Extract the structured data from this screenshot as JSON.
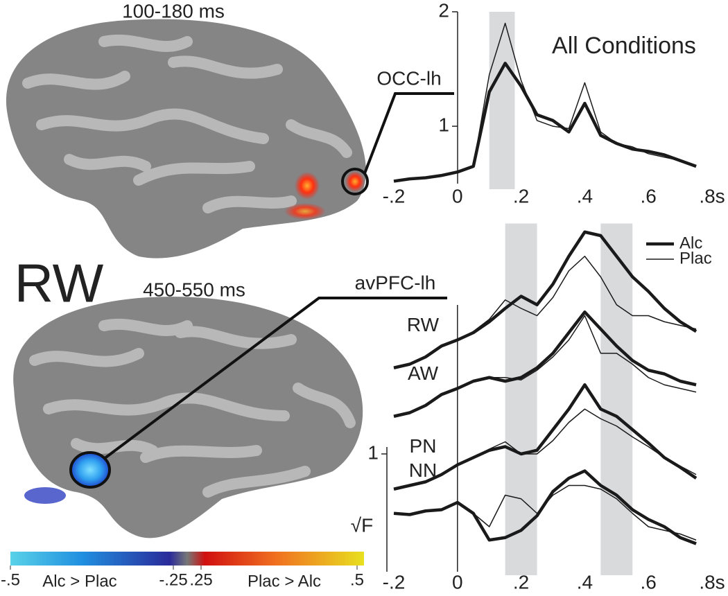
{
  "labels": {
    "panel": "RW",
    "window_top": "100-180 ms",
    "window_bottom": "450-550 ms",
    "region_top": "OCC-lh",
    "region_bottom": "avPFC-lh"
  },
  "colorbar": {
    "ticks": [
      {
        "value": -0.5,
        "label": "-.5"
      },
      {
        "value": -0.25,
        "label": "-.25"
      },
      {
        "value": 0.25,
        "label": ".25"
      },
      {
        "value": 0.5,
        "label": ".5"
      }
    ],
    "left_label": "Alc > Plac",
    "right_label": "Plac > Alc"
  },
  "chart_data": [
    {
      "type": "line",
      "title": "All Conditions",
      "x": [
        -0.2,
        -0.15,
        -0.1,
        -0.05,
        0,
        0.05,
        0.1,
        0.15,
        0.2,
        0.25,
        0.3,
        0.35,
        0.4,
        0.45,
        0.5,
        0.55,
        0.6,
        0.65,
        0.7,
        0.75
      ],
      "xlim": [
        -0.2,
        0.8
      ],
      "xticks": [
        {
          "value": -0.2,
          "label": "-.2"
        },
        0,
        {
          "value": 0.2,
          "label": ".2"
        },
        {
          "value": 0.4,
          "label": ".4"
        },
        {
          "value": 0.6,
          "label": ".6"
        },
        {
          "value": 0.8,
          "label": ".8s"
        }
      ],
      "ylim": [
        0.45,
        2.0
      ],
      "yticks": [
        1,
        2
      ],
      "highlight_ranges": [
        [
          0.1,
          0.18
        ]
      ],
      "series": [
        {
          "name": "Alc",
          "color": "#1a1a1a",
          "values": [
            0.52,
            0.54,
            0.55,
            0.57,
            0.6,
            0.65,
            1.3,
            1.55,
            1.35,
            1.1,
            1.05,
            0.95,
            1.2,
            0.92,
            0.85,
            0.8,
            0.78,
            0.75,
            0.7,
            0.65
          ]
        },
        {
          "name": "Plac",
          "color": "#1a1a1a",
          "values": [
            0.52,
            0.54,
            0.55,
            0.57,
            0.6,
            0.65,
            1.45,
            1.9,
            1.4,
            1.05,
            1.0,
            0.98,
            1.38,
            0.95,
            0.85,
            0.82,
            0.76,
            0.73,
            0.7,
            0.65
          ]
        }
      ]
    },
    {
      "type": "line",
      "y_label": "√F",
      "x": [
        -0.2,
        -0.15,
        -0.1,
        -0.05,
        0,
        0.05,
        0.1,
        0.15,
        0.2,
        0.25,
        0.3,
        0.35,
        0.4,
        0.45,
        0.5,
        0.55,
        0.6,
        0.65,
        0.7,
        0.75
      ],
      "xlim": [
        -0.2,
        0.8
      ],
      "xticks": [
        {
          "value": -0.2,
          "label": "-.2"
        },
        0,
        {
          "value": 0.2,
          "label": ".2"
        },
        {
          "value": 0.4,
          "label": ".4"
        },
        {
          "value": 0.6,
          "label": ".6"
        },
        {
          "value": 0.8,
          "label": ".8s"
        }
      ],
      "ylim": [
        0,
        2.9
      ],
      "yticks": [
        1
      ],
      "highlight_ranges": [
        [
          0.15,
          0.25
        ],
        [
          0.45,
          0.55
        ]
      ],
      "groups": [
        {
          "label": "RW",
          "series": [
            {
              "name": "Alc",
              "color": "#1a1a1a",
              "values": [
                1.71,
                1.74,
                1.8,
                1.89,
                1.94,
                2.0,
                2.09,
                2.2,
                2.3,
                2.23,
                2.4,
                2.63,
                2.83,
                2.8,
                2.63,
                2.46,
                2.34,
                2.2,
                2.09,
                2.01
              ]
            },
            {
              "name": "Plac",
              "color": "#1a1a1a",
              "values": [
                1.71,
                1.74,
                1.8,
                1.89,
                1.94,
                2.01,
                2.11,
                2.27,
                2.2,
                2.14,
                2.29,
                2.51,
                2.63,
                2.46,
                2.23,
                2.14,
                2.14,
                2.09,
                2.06,
                2.03
              ]
            }
          ]
        },
        {
          "label": "AW",
          "series": [
            {
              "name": "Alc",
              "color": "#1a1a1a",
              "values": [
                1.31,
                1.34,
                1.4,
                1.49,
                1.54,
                1.6,
                1.63,
                1.6,
                1.63,
                1.71,
                1.83,
                2.0,
                2.17,
                2.03,
                1.89,
                1.77,
                1.69,
                1.66,
                1.6,
                1.57
              ]
            },
            {
              "name": "Plac",
              "color": "#1a1a1a",
              "values": [
                1.31,
                1.34,
                1.4,
                1.49,
                1.54,
                1.6,
                1.63,
                1.63,
                1.61,
                1.69,
                1.8,
                1.94,
                2.14,
                1.83,
                1.83,
                1.74,
                1.63,
                1.57,
                1.54,
                1.51
              ]
            }
          ]
        },
        {
          "label": "PN",
          "series": [
            {
              "name": "Alc",
              "color": "#1a1a1a",
              "values": [
                0.71,
                0.74,
                0.77,
                0.83,
                0.91,
                0.97,
                1.03,
                1.06,
                1.0,
                1.03,
                1.2,
                1.37,
                1.57,
                1.37,
                1.31,
                1.2,
                1.09,
                0.97,
                0.89,
                0.8
              ]
            },
            {
              "name": "Plac",
              "color": "#1a1a1a",
              "values": [
                0.71,
                0.74,
                0.77,
                0.83,
                0.91,
                0.97,
                1.04,
                1.1,
                1.0,
                1.0,
                1.11,
                1.26,
                1.37,
                1.29,
                1.23,
                1.14,
                1.06,
                0.97,
                0.9,
                0.83
              ]
            }
          ]
        },
        {
          "label": "NN",
          "series": [
            {
              "name": "Alc",
              "color": "#1a1a1a",
              "values": [
                0.51,
                0.5,
                0.53,
                0.54,
                0.6,
                0.51,
                0.29,
                0.31,
                0.37,
                0.49,
                0.69,
                0.8,
                0.86,
                0.74,
                0.66,
                0.54,
                0.46,
                0.4,
                0.31,
                0.26
              ]
            },
            {
              "name": "Plac",
              "color": "#1a1a1a",
              "values": [
                0.51,
                0.5,
                0.53,
                0.54,
                0.6,
                0.51,
                0.4,
                0.66,
                0.63,
                0.51,
                0.66,
                0.74,
                0.74,
                0.71,
                0.63,
                0.51,
                0.4,
                0.37,
                0.34,
                0.29
              ]
            }
          ]
        }
      ]
    }
  ]
}
